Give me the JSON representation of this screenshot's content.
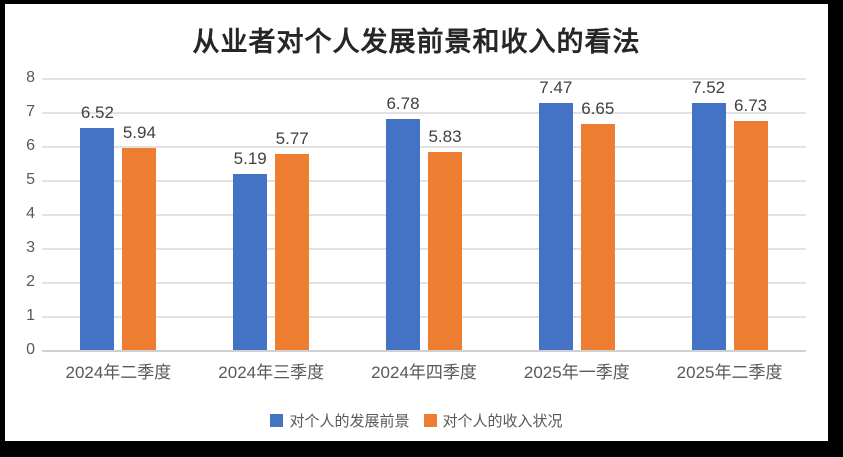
{
  "chart_data": {
    "type": "bar",
    "title": "从业者对个人发展前景和收入的看法",
    "categories": [
      "2024年二季度",
      "2024年三季度",
      "2024年四季度",
      "2025年一季度",
      "2025年二季度"
    ],
    "series": [
      {
        "name": "对个人的发展前景",
        "color": "#4472C4",
        "values": [
          6.52,
          5.19,
          6.78,
          7.47,
          7.52
        ]
      },
      {
        "name": "对个人的收入状况",
        "color": "#ED7D31",
        "values": [
          5.94,
          5.77,
          5.83,
          6.65,
          6.73
        ]
      }
    ],
    "xlabel": "",
    "ylabel": "",
    "ylim": [
      0,
      8
    ],
    "ytick_step": 1,
    "yticks": [
      0,
      1,
      2,
      3,
      4,
      5,
      6,
      7,
      8
    ],
    "grid": true,
    "legend_position": "bottom",
    "value_label_decimals": 2
  },
  "style": {
    "frame_color": "#000000",
    "background_color": "#FFFFFF",
    "gridline_color": "#E2E2E2",
    "axis_line_color": "#D0D0D0",
    "tick_text_color": "#595959",
    "data_label_color": "#404040",
    "title_color": "#262626"
  }
}
